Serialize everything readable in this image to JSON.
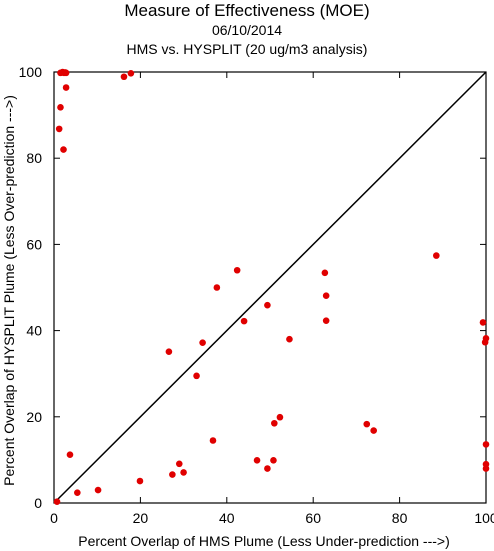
{
  "title": "Measure of Effectiveness (MOE)",
  "subtitle_date": "06/10/2014",
  "subtitle_analysis": "HMS vs. HYSPLIT  (20 ug/m3 analysis)",
  "chart_data": {
    "type": "scatter",
    "title": "Measure of Effectiveness (MOE)",
    "xlabel": "Percent Overlap of HMS Plume (Less Under-prediction --->)",
    "ylabel": "Percent Overlap of HYSPLIT Plume (Less Over-prediction --->)",
    "xlim": [
      0,
      100
    ],
    "ylim": [
      0,
      100
    ],
    "xticks": [
      0,
      20,
      40,
      60,
      80,
      100
    ],
    "yticks": [
      0,
      20,
      40,
      60,
      80,
      100
    ],
    "xtick_labels": [
      "0",
      "20",
      "40",
      "60",
      "80",
      "100"
    ],
    "ytick_labels": [
      "0",
      "20",
      "40",
      "60",
      "80",
      "100"
    ],
    "grid": false,
    "reference_line": "diagonal 1:1",
    "marker_color": "#e00000",
    "points": [
      {
        "x": 0.7,
        "y": 0.3
      },
      {
        "x": 1.2,
        "y": 86.8
      },
      {
        "x": 1.5,
        "y": 91.8
      },
      {
        "x": 1.5,
        "y": 99.8
      },
      {
        "x": 2.0,
        "y": 100.0
      },
      {
        "x": 2.3,
        "y": 99.8
      },
      {
        "x": 2.6,
        "y": 99.9
      },
      {
        "x": 2.8,
        "y": 99.8
      },
      {
        "x": 2.2,
        "y": 82.0
      },
      {
        "x": 2.8,
        "y": 96.4
      },
      {
        "x": 16.2,
        "y": 98.9
      },
      {
        "x": 17.8,
        "y": 99.7
      },
      {
        "x": 3.7,
        "y": 11.2
      },
      {
        "x": 5.4,
        "y": 2.4
      },
      {
        "x": 10.2,
        "y": 3.0
      },
      {
        "x": 19.9,
        "y": 5.1
      },
      {
        "x": 26.6,
        "y": 35.1
      },
      {
        "x": 27.4,
        "y": 6.6
      },
      {
        "x": 29.0,
        "y": 9.1
      },
      {
        "x": 30.0,
        "y": 7.1
      },
      {
        "x": 33.0,
        "y": 29.5
      },
      {
        "x": 34.4,
        "y": 37.2
      },
      {
        "x": 36.8,
        "y": 14.5
      },
      {
        "x": 37.7,
        "y": 50.0
      },
      {
        "x": 42.4,
        "y": 54.0
      },
      {
        "x": 44.0,
        "y": 42.2
      },
      {
        "x": 47.0,
        "y": 9.9
      },
      {
        "x": 49.4,
        "y": 8.0
      },
      {
        "x": 49.4,
        "y": 45.9
      },
      {
        "x": 50.8,
        "y": 9.9
      },
      {
        "x": 51.0,
        "y": 18.5
      },
      {
        "x": 52.3,
        "y": 19.9
      },
      {
        "x": 54.5,
        "y": 38.0
      },
      {
        "x": 62.7,
        "y": 53.4
      },
      {
        "x": 63.0,
        "y": 48.1
      },
      {
        "x": 63.0,
        "y": 42.3
      },
      {
        "x": 72.4,
        "y": 18.3
      },
      {
        "x": 74.0,
        "y": 16.8
      },
      {
        "x": 88.5,
        "y": 57.4
      },
      {
        "x": 99.3,
        "y": 41.9
      },
      {
        "x": 99.8,
        "y": 37.3
      },
      {
        "x": 100.0,
        "y": 38.2
      },
      {
        "x": 100.0,
        "y": 13.6
      },
      {
        "x": 100.0,
        "y": 9.0
      },
      {
        "x": 100.0,
        "y": 8.0
      }
    ]
  }
}
